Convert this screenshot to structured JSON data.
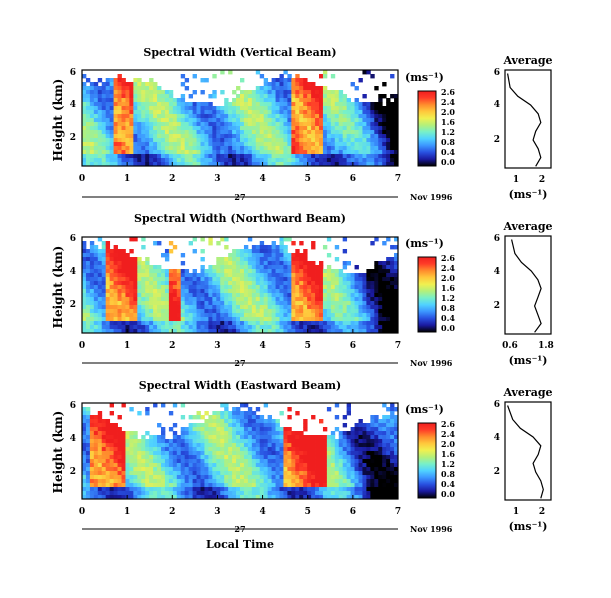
{
  "colors": {
    "colormap": [
      "#000000",
      "#1a1aa0",
      "#2850e0",
      "#3c96ff",
      "#50d2ff",
      "#78f0c8",
      "#b4f07a",
      "#f0f050",
      "#ffc83c",
      "#ff8c2d",
      "#ff3c28",
      "#f01e1e"
    ],
    "background": "#ffffff"
  },
  "x_axis": {
    "ticks": [
      "0",
      "1",
      "2",
      "3",
      "4",
      "5",
      "6",
      "7"
    ],
    "day_label": "27",
    "date_label": "Nov 1996",
    "xlabel": "Local Time"
  },
  "colorbar": {
    "unit": "(ms⁻¹)",
    "ticks": [
      "2.6",
      "2.4",
      "2.0",
      "1.6",
      "1.2",
      "0.8",
      "0.4",
      "0.0"
    ]
  },
  "panels": [
    {
      "title": "Spectral Width (Vertical Beam)",
      "ylabel": "Height (km)",
      "yticks": [
        "6",
        "4",
        "2"
      ],
      "avg_title": "Average",
      "avg_xticks": [
        "1",
        "2"
      ],
      "avg_yticks": [
        "6",
        "4",
        "2"
      ],
      "avg_xlabel": "(ms⁻¹)"
    },
    {
      "title": "Spectral Width (Northward Beam)",
      "ylabel": "Height (km)",
      "yticks": [
        "6",
        "4",
        "2"
      ],
      "avg_title": "Average",
      "avg_xticks": [
        "0.6",
        "1.8"
      ],
      "avg_yticks": [
        "6",
        "4",
        "2"
      ],
      "avg_xlabel": "(ms⁻¹)"
    },
    {
      "title": "Spectral Width (Eastward Beam)",
      "ylabel": "Height (km)",
      "yticks": [
        "6",
        "4",
        "2"
      ],
      "avg_title": "Average",
      "avg_xticks": [
        "1",
        "2"
      ],
      "avg_yticks": [
        "6",
        "4",
        "2"
      ],
      "avg_xlabel": "(ms⁻¹)"
    }
  ],
  "chart_data": [
    {
      "type": "heatmap",
      "title": "Spectral Width (Vertical Beam)",
      "xlabel": "",
      "ylabel": "Height (km)",
      "xlim": [
        0,
        7
      ],
      "ylim": [
        0.4,
        6
      ],
      "zlim": [
        0,
        2.8
      ],
      "hot_bands_hours": [
        [
          0.7,
          1.1
        ],
        [
          4.6,
          5.3
        ]
      ],
      "profile": {
        "x": [
          1.7,
          1.9,
          1.8,
          1.6,
          1.7,
          1.9,
          1.8,
          1.5,
          1.0,
          0.7,
          0.6
        ],
        "y": [
          0.5,
          1.0,
          1.5,
          2.0,
          2.5,
          3.0,
          3.5,
          4.0,
          4.5,
          5.0,
          5.8
        ],
        "xlim": [
          0.5,
          2.3
        ],
        "ylim": [
          0.4,
          6
        ]
      }
    },
    {
      "type": "heatmap",
      "title": "Spectral Width (Northward Beam)",
      "xlabel": "",
      "ylabel": "Height (km)",
      "xlim": [
        0,
        7
      ],
      "ylim": [
        0.4,
        6
      ],
      "zlim": [
        0,
        2.8
      ],
      "hot_bands_hours": [
        [
          0.5,
          1.2
        ],
        [
          1.9,
          2.2
        ],
        [
          4.6,
          5.3
        ]
      ],
      "profile": {
        "x": [
          1.4,
          1.6,
          1.5,
          1.4,
          1.5,
          1.6,
          1.5,
          1.3,
          1.0,
          0.8,
          0.7
        ],
        "y": [
          0.5,
          1.0,
          1.5,
          2.0,
          2.5,
          3.0,
          3.5,
          4.0,
          4.5,
          5.0,
          5.8
        ],
        "xlim": [
          0.5,
          1.9
        ],
        "ylim": [
          0.4,
          6
        ]
      }
    },
    {
      "type": "heatmap",
      "title": "Spectral Width (Eastward Beam)",
      "xlabel": "Local Time",
      "ylabel": "Height (km)",
      "xlim": [
        0,
        7
      ],
      "ylim": [
        0.4,
        6
      ],
      "zlim": [
        0,
        2.8
      ],
      "hot_bands_hours": [
        [
          0.2,
          1.0
        ],
        [
          4.5,
          5.4
        ]
      ],
      "profile": {
        "x": [
          1.9,
          2.0,
          1.9,
          1.7,
          1.6,
          1.8,
          1.9,
          1.6,
          1.1,
          0.8,
          0.6
        ],
        "y": [
          0.5,
          1.0,
          1.5,
          2.0,
          2.5,
          3.0,
          3.5,
          4.0,
          4.5,
          5.0,
          5.8
        ],
        "xlim": [
          0.5,
          2.3
        ],
        "ylim": [
          0.4,
          6
        ]
      }
    }
  ]
}
